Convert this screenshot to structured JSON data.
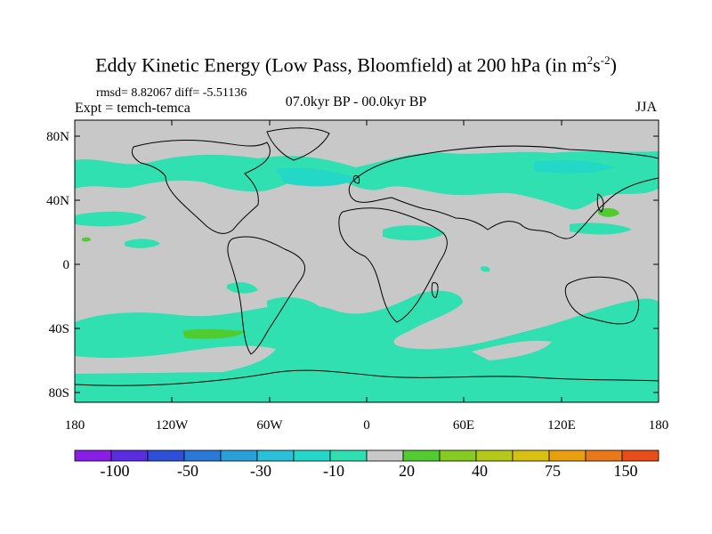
{
  "title": {
    "main": "Eddy Kinetic Energy (Low Pass, Bloomfield) at 200 hPa (in m",
    "units_sup1": "2",
    "units_mid": "s",
    "units_sup2": "-2",
    "close": ")"
  },
  "subtitle": {
    "rmsd": "rmsd= 8.82067 diff= -5.51136",
    "expt": "Expt = temch-temca",
    "period": "07.0kyr BP - 00.0kyr BP",
    "season": "JJA"
  },
  "axes": {
    "lat_labels": [
      "80N",
      "40N",
      "0",
      "40S",
      "80S"
    ],
    "lon_labels": [
      "180",
      "120W",
      "60W",
      "0",
      "60E",
      "120E",
      "180"
    ]
  },
  "colorbar": {
    "labels": [
      "-100",
      "-50",
      "-30",
      "-10",
      "20",
      "40",
      "75",
      "150"
    ],
    "colors": [
      "#8a1ee6",
      "#5a2ee0",
      "#2e4fd8",
      "#2a78d8",
      "#2aa0d8",
      "#2ac0d8",
      "#24d8c8",
      "#30e0b0",
      "#c8c8c8",
      "#50cc30",
      "#86cc20",
      "#b4c818",
      "#d8c010",
      "#e8a010",
      "#e87818",
      "#e84c18"
    ]
  },
  "map": {
    "background_color": "#c8c8c8",
    "neg_color": "#30e0b0",
    "neg2_color": "#24d8c8",
    "pos_color": "#50cc30"
  }
}
